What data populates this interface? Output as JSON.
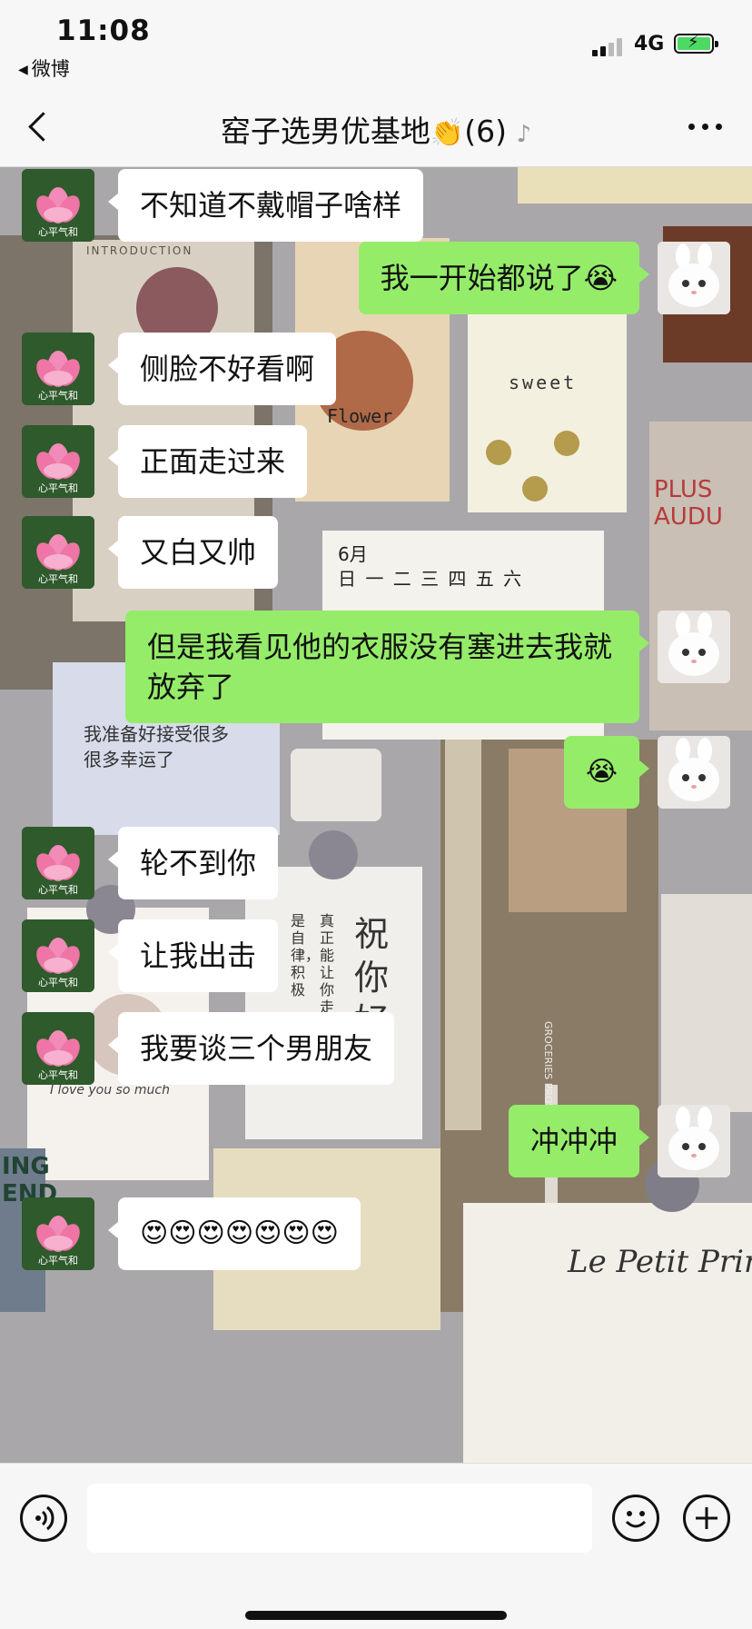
{
  "status_bar": {
    "time": "11:08",
    "back_app": "微博",
    "network": "4G",
    "battery_color": "#4cd964"
  },
  "nav": {
    "title": "窑子选男优基地",
    "title_emoji": "👏",
    "member_count": "(6)",
    "mute_icon": "ear-icon",
    "back_icon": "chevron-left-icon",
    "more_icon": "ellipsis-icon"
  },
  "avatars": {
    "lotus_label": "心平气和"
  },
  "messages": [
    {
      "side": "in",
      "text": "不知道不戴帽子啥样"
    },
    {
      "side": "out",
      "text": "我一开始都说了😭"
    },
    {
      "side": "in",
      "text": "侧脸不好看啊"
    },
    {
      "side": "in",
      "text": "正面走过来"
    },
    {
      "side": "in",
      "text": "又白又帅"
    },
    {
      "side": "out",
      "text": "但是我看见他的衣服没有塞进去我就放弃了"
    },
    {
      "side": "out",
      "text": "😭"
    },
    {
      "side": "in",
      "text": "轮不到你"
    },
    {
      "side": "in",
      "text": "让我出击"
    },
    {
      "side": "in",
      "text": "我要谈三个男朋友"
    },
    {
      "side": "out",
      "text": "冲冲冲"
    },
    {
      "side": "in",
      "text": "😍😍😍😍😍😍😍"
    }
  ],
  "background": {
    "card_texts": [
      "INTRODUCTION",
      "Flower",
      "sweet",
      "PLUS AUDU",
      "6月",
      "日 一 二 三 四 五 六",
      "我准备好接受很多很多幸运了",
      "祝你好",
      "真正能让你走",
      "是自律，积极",
      "I love you so much",
      "Le Petit Prince",
      "GROCERIES PROVISIO",
      "ING END"
    ]
  },
  "input_bar": {
    "voice_icon": "voice-icon",
    "emoji_icon": "smiley-icon",
    "plus_icon": "plus-icon",
    "value": ""
  },
  "colors": {
    "out_bubble": "#95ec69",
    "in_bubble": "#ffffff"
  }
}
